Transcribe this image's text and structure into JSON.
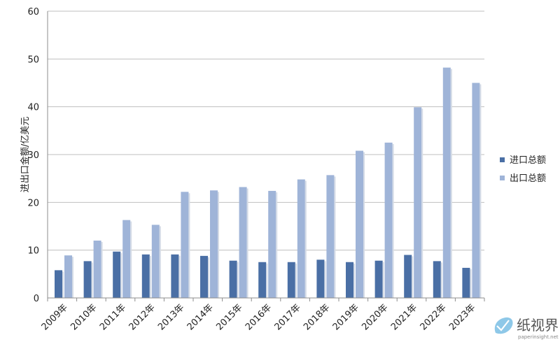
{
  "chart_data": {
    "type": "bar",
    "title": "",
    "xlabel": "",
    "ylabel": "进出口金额/亿美元",
    "ylim": [
      0,
      60
    ],
    "yticks": [
      0,
      10,
      20,
      30,
      40,
      50,
      60
    ],
    "grid": "horizontal",
    "legend": "right",
    "categories": [
      "2009年",
      "2010年",
      "2011年",
      "2012年",
      "2013年",
      "2014年",
      "2015年",
      "2016年",
      "2017年",
      "2018年",
      "2019年",
      "2020年",
      "2021年",
      "2022年",
      "2023年"
    ],
    "series": [
      {
        "name": "进口总额",
        "color": "#4a6fa5",
        "values": [
          5.8,
          7.7,
          9.7,
          9.1,
          9.1,
          8.8,
          7.8,
          7.5,
          7.5,
          8.0,
          7.5,
          7.8,
          9.0,
          7.7,
          6.3
        ]
      },
      {
        "name": "出口总额",
        "color": "#9fb4d8",
        "values": [
          8.9,
          12.0,
          16.3,
          15.3,
          22.2,
          22.5,
          23.2,
          22.4,
          24.8,
          25.7,
          30.8,
          32.5,
          39.9,
          48.2,
          45.0
        ]
      }
    ]
  },
  "watermark": {
    "text": "纸视界",
    "sub": "paperinsight.net"
  }
}
